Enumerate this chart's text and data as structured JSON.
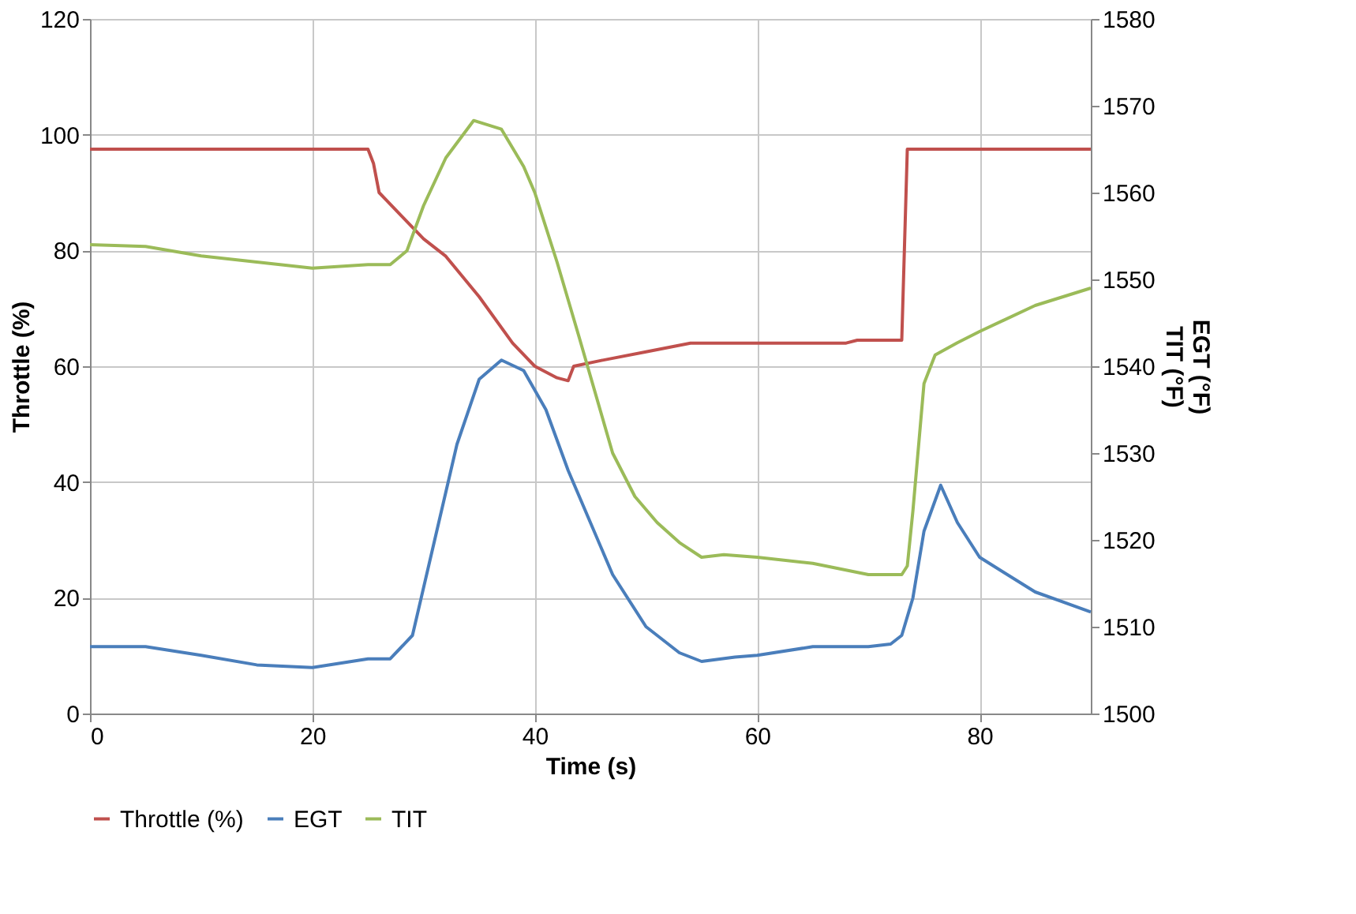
{
  "chart_data": {
    "type": "line",
    "xlabel": "Time (s)",
    "ylabel": "Throttle (%)",
    "y2label": "EGT (°F)\nTIT (°F)",
    "xlim": [
      0,
      90
    ],
    "xticks": [
      0,
      20,
      40,
      60,
      80
    ],
    "ylim": [
      0,
      120
    ],
    "yticks": [
      0,
      20,
      40,
      60,
      80,
      100,
      120
    ],
    "y2lim": [
      1500,
      1580
    ],
    "y2ticks": [
      1500,
      1510,
      1520,
      1530,
      1540,
      1550,
      1560,
      1570,
      1580
    ],
    "grid": true,
    "legend": "bottom",
    "marker": "none",
    "line_style": "solid",
    "series": [
      {
        "name": "Throttle (%)",
        "color": "#c0504d",
        "x": [
          0,
          10,
          20,
          25,
          25.5,
          26,
          28,
          30,
          32,
          35,
          38,
          40,
          42,
          43,
          43.5,
          46,
          50,
          54,
          60,
          68,
          69,
          73,
          73.5,
          80,
          90
        ],
        "values": [
          97.5,
          97.5,
          97.5,
          97.5,
          95,
          90,
          86,
          82,
          79,
          72,
          64,
          60,
          58,
          57.5,
          60,
          61,
          62.5,
          64,
          64,
          64,
          64.5,
          64.5,
          97.5,
          97.5,
          97.5
        ]
      },
      {
        "name": "EGT",
        "color": "#4a7ebb",
        "axis": "y2",
        "x": [
          0,
          5,
          10,
          15,
          20,
          25,
          27,
          29,
          31,
          33,
          35,
          37,
          39,
          41,
          43,
          45,
          47,
          50,
          53,
          55,
          58,
          60,
          65,
          70,
          72,
          73,
          74,
          75,
          76.5,
          78,
          80,
          85,
          90
        ],
        "values": [
          1507.7,
          1507.7,
          1506.7,
          1505.6,
          1505.3,
          1506.3,
          1506.3,
          1509,
          1520,
          1531,
          1538.5,
          1540.7,
          1539.5,
          1535,
          1528,
          1522,
          1516,
          1510,
          1507,
          1506,
          1506.5,
          1506.7,
          1507.7,
          1507.7,
          1508,
          1509,
          1513.3,
          1521,
          1526.3,
          1522,
          1518,
          1514,
          1511.7
        ]
      },
      {
        "name": "TIT",
        "color": "#9bbb59",
        "axis": "y2",
        "x": [
          0,
          5,
          10,
          15,
          20,
          25,
          27,
          28.5,
          30,
          32,
          34.5,
          37,
          39,
          40,
          42,
          44,
          47,
          49,
          51,
          53,
          55,
          57,
          60,
          65,
          70,
          73,
          73.5,
          74,
          75,
          76,
          78,
          80,
          85,
          90
        ],
        "values": [
          1554,
          1553.8,
          1552.7,
          1552,
          1551.3,
          1551.7,
          1551.7,
          1553.3,
          1558.5,
          1564,
          1568.3,
          1567.3,
          1563,
          1560,
          1552,
          1543.3,
          1530,
          1525,
          1522,
          1519.7,
          1518,
          1518.3,
          1518,
          1517.3,
          1516,
          1516,
          1517,
          1523.3,
          1538,
          1541.3,
          1542.7,
          1544,
          1547,
          1549
        ]
      }
    ]
  }
}
